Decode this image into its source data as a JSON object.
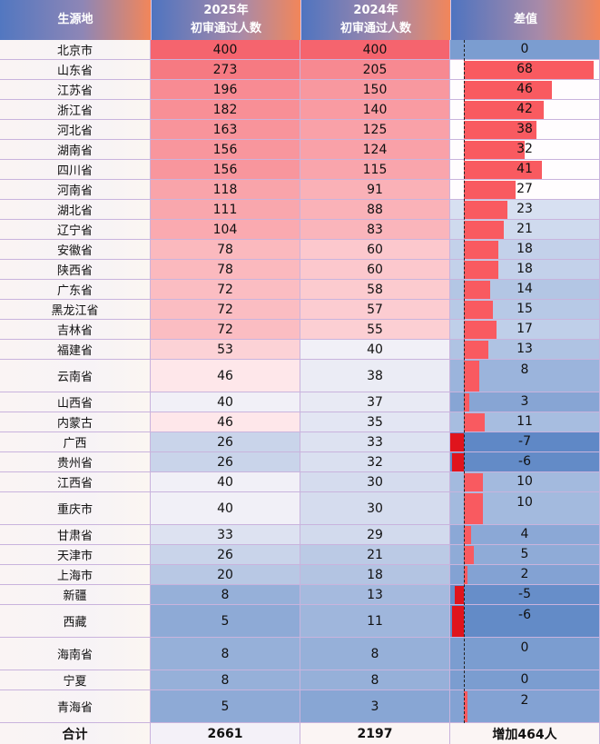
{
  "headers": {
    "region": "生源地",
    "y2025_line1": "2025年",
    "y2025_line2": "初审通过人数",
    "y2024_line1": "2024年",
    "y2024_line2": "初审通过人数",
    "diff": "差值"
  },
  "rows": [
    {
      "region": "北京市",
      "y2025": 400,
      "y2024": 400,
      "diff": 0
    },
    {
      "region": "山东省",
      "y2025": 273,
      "y2024": 205,
      "diff": 68
    },
    {
      "region": "江苏省",
      "y2025": 196,
      "y2024": 150,
      "diff": 46
    },
    {
      "region": "浙江省",
      "y2025": 182,
      "y2024": 140,
      "diff": 42
    },
    {
      "region": "河北省",
      "y2025": 163,
      "y2024": 125,
      "diff": 38
    },
    {
      "region": "湖南省",
      "y2025": 156,
      "y2024": 124,
      "diff": 32
    },
    {
      "region": "四川省",
      "y2025": 156,
      "y2024": 115,
      "diff": 41
    },
    {
      "region": "河南省",
      "y2025": 118,
      "y2024": 91,
      "diff": 27
    },
    {
      "region": "湖北省",
      "y2025": 111,
      "y2024": 88,
      "diff": 23
    },
    {
      "region": "辽宁省",
      "y2025": 104,
      "y2024": 83,
      "diff": 21
    },
    {
      "region": "安徽省",
      "y2025": 78,
      "y2024": 60,
      "diff": 18
    },
    {
      "region": "陕西省",
      "y2025": 78,
      "y2024": 60,
      "diff": 18
    },
    {
      "region": "广东省",
      "y2025": 72,
      "y2024": 58,
      "diff": 14
    },
    {
      "region": "黑龙江省",
      "y2025": 72,
      "y2024": 57,
      "diff": 15
    },
    {
      "region": "吉林省",
      "y2025": 72,
      "y2024": 55,
      "diff": 17
    },
    {
      "region": "福建省",
      "y2025": 53,
      "y2024": 40,
      "diff": 13
    },
    {
      "region": "云南省",
      "y2025": 46,
      "y2024": 38,
      "diff": 8
    },
    {
      "region": "山西省",
      "y2025": 40,
      "y2024": 37,
      "diff": 3
    },
    {
      "region": "内蒙古",
      "y2025": 46,
      "y2024": 35,
      "diff": 11
    },
    {
      "region": "广西",
      "y2025": 26,
      "y2024": 33,
      "diff": -7
    },
    {
      "region": "贵州省",
      "y2025": 26,
      "y2024": 32,
      "diff": -6
    },
    {
      "region": "江西省",
      "y2025": 40,
      "y2024": 30,
      "diff": 10
    },
    {
      "region": "重庆市",
      "y2025": 40,
      "y2024": 30,
      "diff": 10
    },
    {
      "region": "甘肃省",
      "y2025": 33,
      "y2024": 29,
      "diff": 4
    },
    {
      "region": "天津市",
      "y2025": 26,
      "y2024": 21,
      "diff": 5
    },
    {
      "region": "上海市",
      "y2025": 20,
      "y2024": 18,
      "diff": 2
    },
    {
      "region": "新疆",
      "y2025": 8,
      "y2024": 13,
      "diff": -5
    },
    {
      "region": "西藏",
      "y2025": 5,
      "y2024": 11,
      "diff": -6
    },
    {
      "region": "海南省",
      "y2025": 8,
      "y2024": 8,
      "diff": 0
    },
    {
      "region": "宁夏",
      "y2025": 8,
      "y2024": 8,
      "diff": 0
    },
    {
      "region": "青海省",
      "y2025": 5,
      "y2024": 3,
      "diff": 2
    }
  ],
  "total": {
    "label": "合计",
    "y2025": "2661",
    "y2024": "2197",
    "diff": "增加464人"
  },
  "colors": {
    "positive_bar": "#f95a60",
    "negative_bar": "#e0141c",
    "high": "#f5646e",
    "mid": "#fffafc",
    "low": "#8eaad6"
  }
}
